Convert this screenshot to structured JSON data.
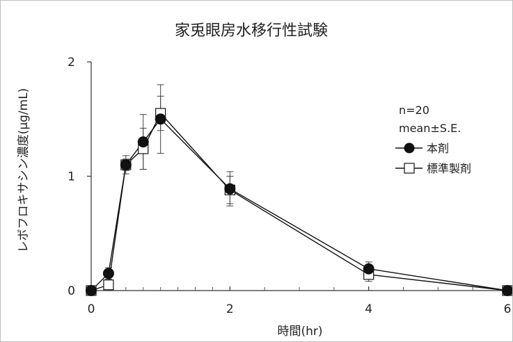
{
  "chart_data": {
    "type": "line",
    "title": "家兎眼房水移行性試験",
    "xlabel": "時間(hr)",
    "ylabel": "レボフロキサシン濃度(μg/mL)",
    "xlim": [
      0,
      6
    ],
    "ylim": [
      0,
      2
    ],
    "xticks": [
      "0",
      "2",
      "4",
      "6"
    ],
    "yticks": [
      "0",
      "1",
      "2"
    ],
    "x_minor_ticks": [
      0.25,
      0.5,
      0.75,
      1,
      1.25,
      1.5,
      1.75,
      2.5,
      3,
      3.5,
      4.5,
      5,
      5.5
    ],
    "grid": false,
    "legend_position": "right",
    "annotations": [
      "n=20",
      "mean±S.E."
    ],
    "series": [
      {
        "name": "本剤",
        "marker": "filled-circle",
        "color": "#111111",
        "x": [
          0,
          0.25,
          0.5,
          0.75,
          1,
          2,
          4,
          6
        ],
        "y": [
          0.0,
          0.15,
          1.1,
          1.3,
          1.5,
          0.89,
          0.19,
          0.0
        ],
        "err": [
          0.0,
          0.05,
          0.05,
          0.24,
          0.3,
          0.15,
          0.06,
          0.0
        ]
      },
      {
        "name": "標準製剤",
        "marker": "open-square",
        "color": "#111111",
        "x": [
          0,
          0.25,
          0.5,
          0.75,
          1,
          2,
          4,
          6
        ],
        "y": [
          0.0,
          0.05,
          1.1,
          1.24,
          1.55,
          0.88,
          0.14,
          0.0
        ],
        "err": [
          0.0,
          0.04,
          0.08,
          0.18,
          0.15,
          0.12,
          0.06,
          0.0
        ]
      }
    ]
  }
}
